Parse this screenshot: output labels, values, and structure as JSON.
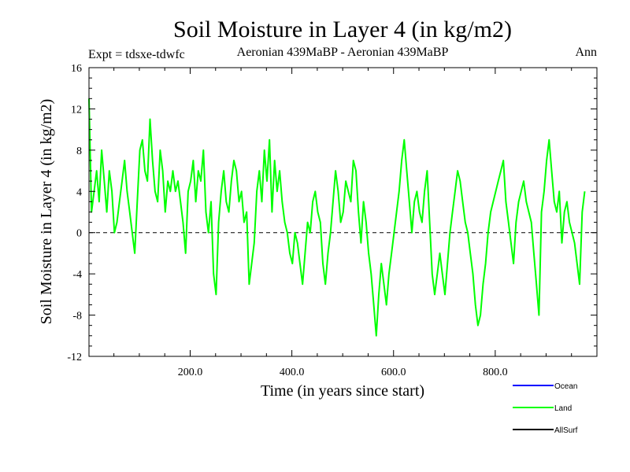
{
  "chart_data": {
    "type": "line",
    "title": "Soil Moisture in Layer 4 (in kg/m2)",
    "subtitle_left": "Expt = tdsxe-tdwfc",
    "subtitle_center": "Aeronian 439MaBP - Aeronian 439MaBP",
    "subtitle_right": "Ann",
    "xlabel": "Time (in years since start)",
    "ylabel": "Soil Moisture in Layer 4 (in kg/m2)",
    "xlim": [
      1,
      1000
    ],
    "ylim": [
      -12,
      16
    ],
    "xticks": [
      200,
      400,
      600,
      800
    ],
    "xtick_labels": [
      "200.0",
      "400.0",
      "600.0",
      "800.0"
    ],
    "yticks": [
      -12,
      -8,
      -4,
      0,
      4,
      8,
      12,
      16
    ],
    "ytick_labels": [
      "-12",
      "-8",
      "-4",
      "0",
      "4",
      "8",
      "12",
      "16"
    ],
    "zero_line": true,
    "legend": [
      {
        "name": "Ocean",
        "color": "#0000ff"
      },
      {
        "name": "Land",
        "color": "#00ff00"
      },
      {
        "name": "AllSurf",
        "color": "#000000"
      }
    ],
    "series": [
      {
        "name": "Land",
        "color": "#00ff00",
        "x_start": 1,
        "x_step": 5,
        "values": [
          13,
          2,
          4,
          6,
          3,
          8,
          5,
          2,
          6,
          4,
          0,
          1,
          3,
          5,
          7,
          4,
          2,
          0,
          -2,
          3,
          8,
          9,
          6,
          5,
          11,
          7,
          4,
          3,
          8,
          6,
          2,
          5,
          4,
          6,
          4,
          5,
          3,
          1,
          -2,
          4,
          5,
          7,
          3,
          6,
          5,
          8,
          2,
          0,
          3,
          -4,
          -6,
          1,
          4,
          6,
          3,
          2,
          5,
          7,
          6,
          3,
          4,
          1,
          2,
          -5,
          -3,
          -1,
          4,
          6,
          3,
          8,
          5,
          9,
          2,
          7,
          4,
          6,
          3,
          1,
          0,
          -2,
          -3,
          0,
          -1,
          -3,
          -5,
          -2,
          1,
          0,
          3,
          4,
          2,
          1,
          -3,
          -5,
          -2,
          0,
          3,
          6,
          4,
          1,
          2,
          5,
          4,
          3,
          7,
          6,
          2,
          -1,
          3,
          1,
          -2,
          -4,
          -7,
          -10,
          -6,
          -3,
          -5,
          -7,
          -4,
          -2,
          0,
          2,
          4,
          7,
          9,
          6,
          3,
          0,
          3,
          4,
          2,
          1,
          4,
          6,
          1,
          -4,
          -6,
          -4,
          -2,
          -4,
          -6,
          -3,
          0,
          2,
          4,
          6,
          5,
          3,
          1,
          0,
          -2,
          -4,
          -7,
          -9,
          -8,
          -5,
          -3,
          0,
          2,
          3,
          4,
          5,
          6,
          7,
          3,
          1,
          -1,
          -3,
          1,
          3,
          4,
          5,
          3,
          2,
          1,
          -2,
          -5,
          -8,
          2,
          4,
          7,
          9,
          6,
          3,
          2,
          4,
          -1,
          2,
          3,
          1,
          0,
          -1,
          -3,
          -5,
          2,
          4
        ]
      }
    ]
  }
}
